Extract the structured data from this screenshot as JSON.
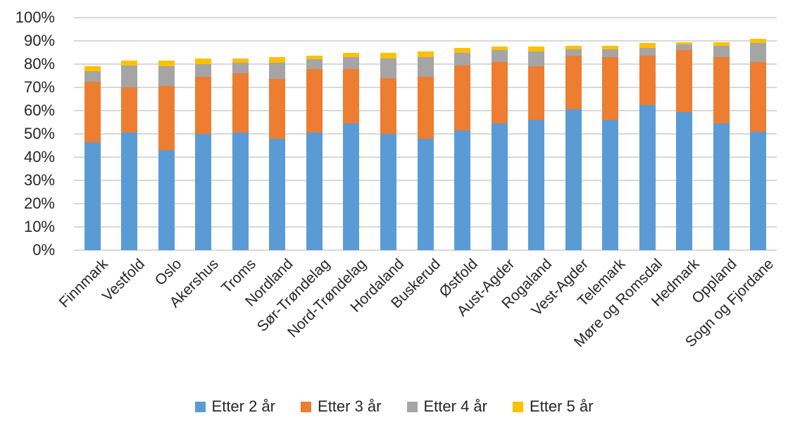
{
  "chart_data": {
    "type": "bar",
    "stacked": true,
    "orientation": "vertical",
    "title": "",
    "xlabel": "",
    "ylabel": "",
    "ylim": [
      0,
      100
    ],
    "ytick_step": 10,
    "ytick_suffix": "%",
    "grid": true,
    "gridline_color": "#d9d9d9",
    "legend_position": "bottom",
    "categories": [
      "Finnmark",
      "Vestfold",
      "Oslo",
      "Akershus",
      "Troms",
      "Nordland",
      "Sør-Trøndelag",
      "Nord-Trøndelag",
      "Hordaland",
      "Buskerud",
      "Østfold",
      "Aust-Agder",
      "Rogaland",
      "Vest-Agder",
      "Telemark",
      "Møre og Romsdal",
      "Hedmark",
      "Oppland",
      "Sogn og Fjordane"
    ],
    "series": [
      {
        "name": "Etter 2 år",
        "color": "#5b9bd5",
        "values": [
          46.5,
          50.5,
          43,
          50,
          50.5,
          48,
          50.5,
          54.5,
          50,
          48,
          51.5,
          54.5,
          56,
          60.5,
          56,
          62.5,
          59.5,
          54.5,
          51
        ]
      },
      {
        "name": "Etter 3 år",
        "color": "#ed7d31",
        "values": [
          26,
          19.5,
          27.5,
          24.5,
          25.5,
          25.5,
          27.5,
          23.5,
          24,
          26.5,
          28,
          26.5,
          23,
          23,
          27,
          21,
          26.5,
          28.5,
          30
        ]
      },
      {
        "name": "Etter 4 år",
        "color": "#a5a5a5",
        "values": [
          4.5,
          9.5,
          8.5,
          5.5,
          4.5,
          7,
          4,
          5,
          8.5,
          8.5,
          5.5,
          5,
          6.5,
          3,
          3.5,
          3.5,
          2.5,
          5,
          8
        ]
      },
      {
        "name": "Etter 5 år",
        "color": "#ffc000",
        "values": [
          2,
          2,
          2.5,
          2.5,
          2,
          2.5,
          1.5,
          2,
          2.5,
          2.5,
          2,
          1.5,
          2,
          1.5,
          1.5,
          2,
          1,
          1.5,
          2
        ]
      }
    ]
  }
}
